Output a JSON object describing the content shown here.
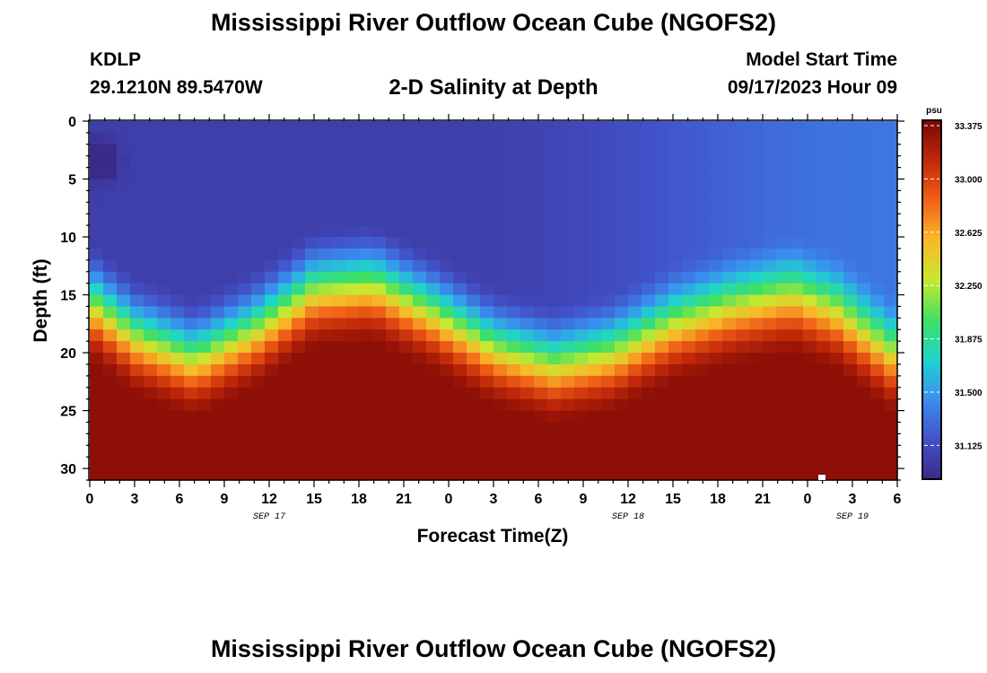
{
  "header": {
    "title": "Mississippi River Outflow Ocean Cube (NGOFS2)",
    "station_id": "KDLP",
    "station_coords": "29.1210N  89.5470W",
    "subtitle": "2-D Salinity at Depth",
    "model_label": "Model Start Time",
    "model_time": "09/17/2023 Hour 09"
  },
  "footer": {
    "title": "Mississippi River Outflow Ocean Cube (NGOFS2)"
  },
  "chart_data": {
    "type": "heatmap",
    "xlabel": "Forecast Time(Z)",
    "ylabel": "Depth (ft)",
    "x_hours_range": [
      0,
      54
    ],
    "x_tick_labels": [
      "0",
      "3",
      "6",
      "9",
      "12",
      "15",
      "18",
      "21",
      "0",
      "3",
      "6",
      "9",
      "12",
      "15",
      "18",
      "21",
      "0",
      "3",
      "6"
    ],
    "date_labels": [
      {
        "label": "SEP 17",
        "at_tick": 4
      },
      {
        "label": "SEP 18",
        "at_tick": 12
      },
      {
        "label": "SEP 19",
        "at_tick": 17
      }
    ],
    "ylim": [
      0,
      31
    ],
    "y_reversed": true,
    "y_tick_labels": [
      "0",
      "5",
      "10",
      "15",
      "20",
      "25",
      "30"
    ],
    "colorbar": {
      "unit": "psu",
      "range": [
        30.85,
        33.375
      ],
      "ticks": [
        "31.125",
        "31.500",
        "31.875",
        "32.250",
        "32.625",
        "33.000",
        "33.375"
      ],
      "colors": [
        "#3a2a8a",
        "#4252c8",
        "#3a8ef0",
        "#1fd4cc",
        "#40e060",
        "#c8e830",
        "#f8b828",
        "#f06018",
        "#c02808",
        "#7a0606"
      ]
    },
    "surface_salinity_psu": 31.0,
    "bottom_salinity_psu": 33.3,
    "halocline_depth_ft": [
      {
        "x": 0,
        "depth": 16
      },
      {
        "x": 3,
        "depth": 19
      },
      {
        "x": 7,
        "depth": 21
      },
      {
        "x": 11,
        "depth": 18.5
      },
      {
        "x": 15,
        "depth": 15
      },
      {
        "x": 19,
        "depth": 14.5
      },
      {
        "x": 23,
        "depth": 17
      },
      {
        "x": 27,
        "depth": 20
      },
      {
        "x": 31,
        "depth": 21.5
      },
      {
        "x": 35,
        "depth": 20.5
      },
      {
        "x": 39,
        "depth": 18
      },
      {
        "x": 43,
        "depth": 16.5
      },
      {
        "x": 47,
        "depth": 15.5
      },
      {
        "x": 50,
        "depth": 17
      },
      {
        "x": 54,
        "depth": 21
      }
    ]
  }
}
